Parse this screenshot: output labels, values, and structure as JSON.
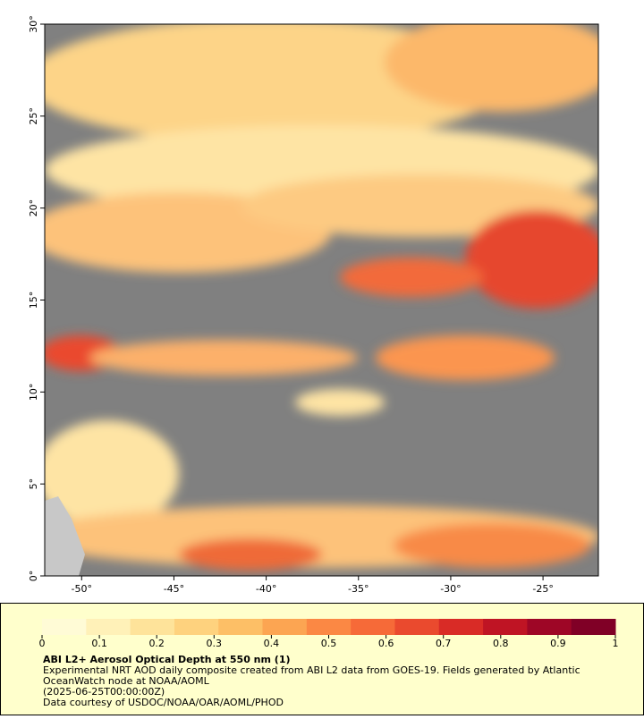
{
  "map": {
    "xlim": [
      -52,
      -22
    ],
    "ylim": [
      0,
      30
    ],
    "xticks": [
      {
        "value": -50,
        "label": "-50°"
      },
      {
        "value": -45,
        "label": "-45°"
      },
      {
        "value": -40,
        "label": "-40°"
      },
      {
        "value": -35,
        "label": "-35°"
      },
      {
        "value": -30,
        "label": "-30°"
      },
      {
        "value": -25,
        "label": "-25°"
      }
    ],
    "yticks": [
      {
        "value": 0,
        "label": "0°"
      },
      {
        "value": 5,
        "label": "5°"
      },
      {
        "value": 10,
        "label": "10°"
      },
      {
        "value": 15,
        "label": "15°"
      },
      {
        "value": 20,
        "label": "20°"
      },
      {
        "value": 25,
        "label": "25°"
      },
      {
        "value": 30,
        "label": "30°"
      }
    ]
  },
  "colorbar": {
    "lim": [
      0,
      1
    ],
    "ticks": [
      0,
      0.1,
      0.2,
      0.3,
      0.4,
      0.5,
      0.6,
      0.7,
      0.8,
      0.9,
      1
    ],
    "colors": [
      "#fffbd6",
      "#fff1b8",
      "#fee39a",
      "#fed27e",
      "#fdbf66",
      "#fca552",
      "#fb8844",
      "#f66a38",
      "#ea4a2e",
      "#d92b26",
      "#bf1424",
      "#9e0626",
      "#800026"
    ]
  },
  "caption": {
    "title": "ABI L2+ Aerosol Optical Depth at 550 nm (1)",
    "lines": [
      "Experimental NRT AOD daily composite created from ABI L2 data from GOES-19. Fields generated by Atlantic",
      "OceanWatch node at NOAA/AOML",
      "(2025-06-25T00:00:00Z)",
      "Data courtesy of USDOC/NOAA/OAR/AOML/PHOD"
    ]
  }
}
